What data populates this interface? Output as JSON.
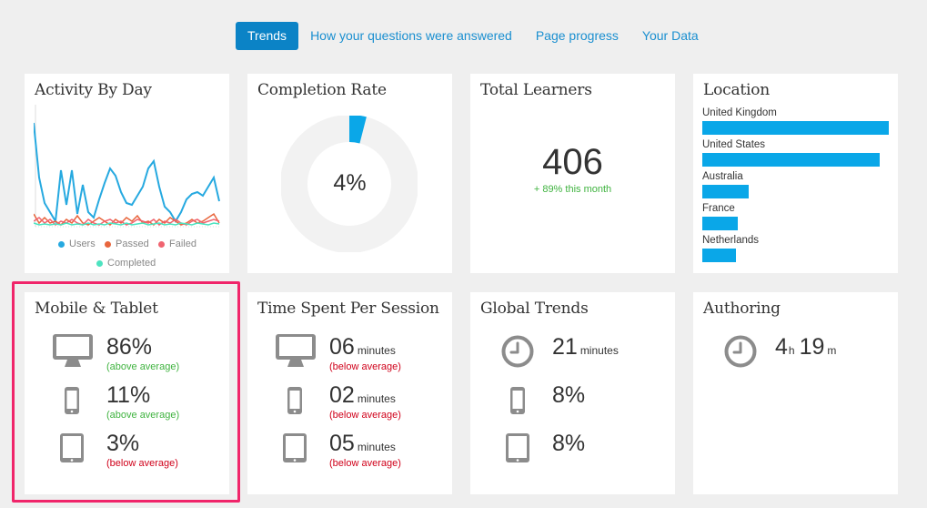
{
  "tabs": [
    {
      "label": "Trends",
      "active": true
    },
    {
      "label": "How your questions were answered",
      "active": false
    },
    {
      "label": "Page progress",
      "active": false
    },
    {
      "label": "Your Data",
      "active": false
    }
  ],
  "activity": {
    "title": "Activity By Day",
    "legend": [
      {
        "label": "Users",
        "color": "#26a9e0"
      },
      {
        "label": "Passed",
        "color": "#e8663d"
      },
      {
        "label": "Failed",
        "color": "#f06470"
      },
      {
        "label": "Completed",
        "color": "#4de3c0"
      }
    ]
  },
  "completion": {
    "title": "Completion Rate",
    "value": "4%",
    "fraction": 0.04,
    "color": "#0aa7e8",
    "track_color": "#f2f2f2"
  },
  "learners": {
    "title": "Total Learners",
    "value": "406",
    "change": "+  89% this month"
  },
  "location": {
    "title": "Location",
    "countries": [
      {
        "name": "United Kingdom",
        "share": 1.0
      },
      {
        "name": "United States",
        "share": 0.95
      },
      {
        "name": "Australia",
        "share": 0.25
      },
      {
        "name": "France",
        "share": 0.19
      },
      {
        "name": "Netherlands",
        "share": 0.18
      }
    ]
  },
  "mobile": {
    "title": "Mobile & Tablet",
    "rows": [
      {
        "icon": "desktop-icon",
        "value": "86%",
        "note": "(above average)"
      },
      {
        "icon": "phone-icon",
        "value": "11%",
        "note": "(above average)"
      },
      {
        "icon": "tablet-icon",
        "value": "3%",
        "note": "(below average)"
      }
    ]
  },
  "time": {
    "title": "Time Spent Per Session",
    "rows": [
      {
        "icon": "desktop-icon",
        "value": "06",
        "unit": "minutes",
        "note": "(below average)"
      },
      {
        "icon": "phone-icon",
        "value": "02",
        "unit": "minutes",
        "note": "(below average)"
      },
      {
        "icon": "tablet-icon",
        "value": "05",
        "unit": "minutes",
        "note": "(below average)"
      }
    ]
  },
  "global": {
    "title": "Global Trends",
    "rows": [
      {
        "icon": "clock-icon",
        "value": "21",
        "unit": "minutes"
      },
      {
        "icon": "phone-icon",
        "value": "8%"
      },
      {
        "icon": "tablet-icon",
        "value": "8%"
      }
    ]
  },
  "authoring": {
    "title": "Authoring",
    "icon": "clock-icon",
    "hours": "4",
    "hours_unit": "h",
    "minutes": "19",
    "minutes_unit": "m"
  },
  "colors": {
    "accent": "#0b83c6",
    "bar": "#0aa7e8",
    "highlight": "#f0256a",
    "good": "#3fb33f",
    "bad": "#d0021b"
  }
}
